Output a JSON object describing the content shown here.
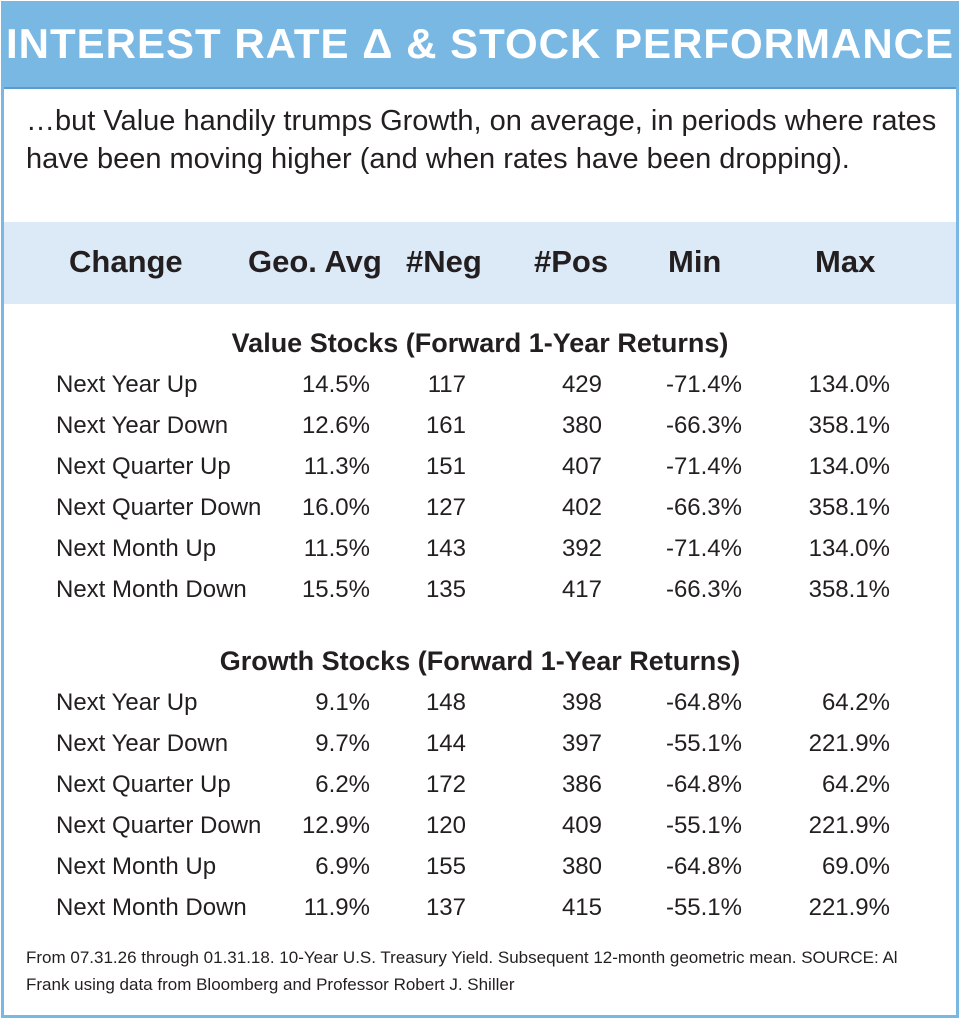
{
  "title": "INTEREST RATE Δ & STOCK PERFORMANCE",
  "subtitle": "…but Value handily trumps Growth, on average, in periods where rates have been moving higher (and when rates have been dropping).",
  "columns": [
    "Change",
    "Geo. Avg",
    "#Neg",
    "#Pos",
    "Min",
    "Max"
  ],
  "sections": [
    {
      "title": "Value Stocks (Forward 1-Year Returns)",
      "rows": [
        {
          "change": "Next Year Up",
          "geo_avg": "14.5%",
          "neg": "117",
          "pos": "429",
          "min": "-71.4%",
          "max": "134.0%"
        },
        {
          "change": "Next Year Down",
          "geo_avg": "12.6%",
          "neg": "161",
          "pos": "380",
          "min": "-66.3%",
          "max": "358.1%"
        },
        {
          "change": "Next Quarter Up",
          "geo_avg": "11.3%",
          "neg": "151",
          "pos": "407",
          "min": "-71.4%",
          "max": "134.0%"
        },
        {
          "change": "Next Quarter Down",
          "geo_avg": "16.0%",
          "neg": "127",
          "pos": "402",
          "min": "-66.3%",
          "max": "358.1%"
        },
        {
          "change": "Next Month Up",
          "geo_avg": "11.5%",
          "neg": "143",
          "pos": "392",
          "min": "-71.4%",
          "max": "134.0%"
        },
        {
          "change": "Next Month Down",
          "geo_avg": "15.5%",
          "neg": "135",
          "pos": "417",
          "min": "-66.3%",
          "max": "358.1%"
        }
      ]
    },
    {
      "title": "Growth Stocks (Forward 1-Year Returns)",
      "rows": [
        {
          "change": "Next Year Up",
          "geo_avg": "9.1%",
          "neg": "148",
          "pos": "398",
          "min": "-64.8%",
          "max": "64.2%"
        },
        {
          "change": "Next Year Down",
          "geo_avg": "9.7%",
          "neg": "144",
          "pos": "397",
          "min": "-55.1%",
          "max": "221.9%"
        },
        {
          "change": "Next Quarter Up",
          "geo_avg": "6.2%",
          "neg": "172",
          "pos": "386",
          "min": "-64.8%",
          "max": "64.2%"
        },
        {
          "change": "Next Quarter Down",
          "geo_avg": "12.9%",
          "neg": "120",
          "pos": "409",
          "min": "-55.1%",
          "max": "221.9%"
        },
        {
          "change": "Next Month Up",
          "geo_avg": "6.9%",
          "neg": "155",
          "pos": "380",
          "min": "-64.8%",
          "max": "69.0%"
        },
        {
          "change": "Next Month Down",
          "geo_avg": "11.9%",
          "neg": "137",
          "pos": "415",
          "min": "-55.1%",
          "max": "221.9%"
        }
      ]
    }
  ],
  "footnote": "From 07.31.26 through 01.31.18. 10-Year U.S. Treasury Yield. Subsequent 12-month geometric mean. SOURCE: Al Frank using data from Bloomberg and Professor Robert J. Shiller",
  "colors": {
    "accent": "#7ab8e4",
    "header_band": "#dce9f6",
    "text": "#231f20"
  }
}
